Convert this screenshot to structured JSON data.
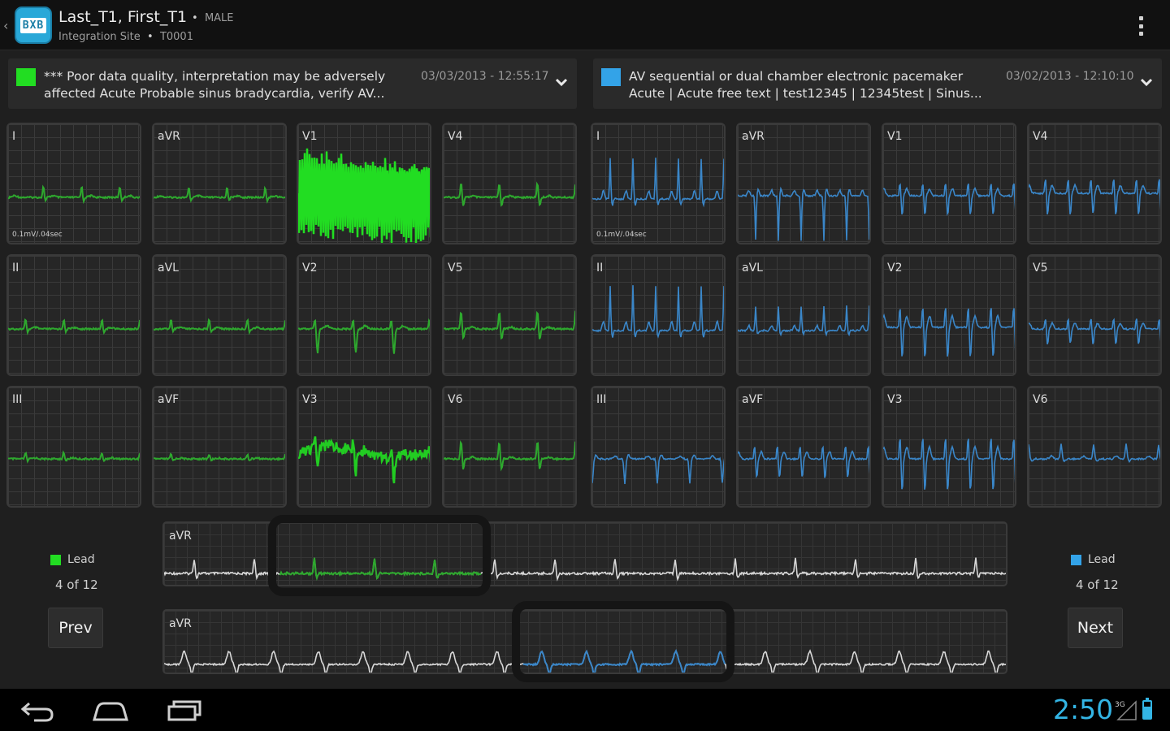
{
  "header": {
    "back_icon": "back-chevron-icon",
    "app_logo_text": "BXB",
    "patient_name": "Last_T1, First_T1",
    "sex": "MALE",
    "site_line": "Integration Site",
    "patient_id": "T0001",
    "separator": "•",
    "menu_icon": "overflow-menu-icon"
  },
  "interpretations": [
    {
      "color": "#22dd22",
      "text_line1": "*** Poor data quality, interpretation may be adversely",
      "text_line2": "affected Acute Probable sinus bradycardia, verify AV...",
      "datetime": "03/03/2013 - 12:55:17"
    },
    {
      "color": "#33a3e8",
      "text_line1": "AV sequential or dual chamber electronic pacemaker",
      "text_line2": "Acute | Acute free text | test12345 | 12345test | Sinus...",
      "datetime": "03/02/2013 - 12:10:10"
    }
  ],
  "leads": {
    "left": [
      [
        {
          "label": "I",
          "scale": "0.1mV/.04sec"
        },
        {
          "label": "aVR"
        },
        {
          "label": "V1"
        },
        {
          "label": "V4"
        }
      ],
      [
        {
          "label": "II"
        },
        {
          "label": "aVL"
        },
        {
          "label": "V2"
        },
        {
          "label": "V5"
        }
      ],
      [
        {
          "label": "III"
        },
        {
          "label": "aVF"
        },
        {
          "label": "V3"
        },
        {
          "label": "V6"
        }
      ]
    ],
    "right": [
      [
        {
          "label": "I",
          "scale": "0.1mV/.04sec"
        },
        {
          "label": "aVR"
        },
        {
          "label": "V1"
        },
        {
          "label": "V4"
        }
      ],
      [
        {
          "label": "II"
        },
        {
          "label": "aVL"
        },
        {
          "label": "V2"
        },
        {
          "label": "V5"
        }
      ],
      [
        {
          "label": "III"
        },
        {
          "label": "aVF"
        },
        {
          "label": "V3"
        },
        {
          "label": "V6"
        }
      ]
    ]
  },
  "rhythm": {
    "top_label": "aVR",
    "bottom_label": "aVR"
  },
  "left_ctl": {
    "indicator_color": "#22dd22",
    "label": "Lead",
    "count": "4 of 12",
    "button": "Prev"
  },
  "right_ctl": {
    "indicator_color": "#33a3e8",
    "label": "Lead",
    "count": "4 of 12",
    "button": "Next"
  },
  "colors": {
    "green_trace": "#2ea82e",
    "bright_green": "#33ee33",
    "blue_trace": "#3a86c8",
    "gray_trace": "#d8d8d8",
    "accent": "#33b5e5"
  },
  "system_bar": {
    "back_icon": "back-nav-icon",
    "home_icon": "home-nav-icon",
    "recents_icon": "recents-nav-icon",
    "time": "2:50",
    "signal_label": "3G",
    "signal_icon": "signal-icon",
    "battery_icon": "battery-icon"
  }
}
